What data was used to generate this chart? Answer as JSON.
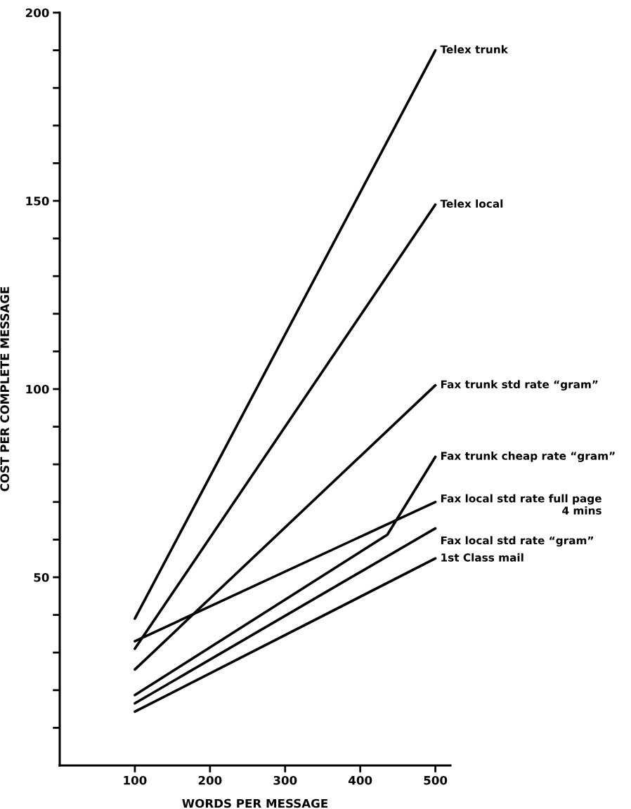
{
  "chart_data": {
    "type": "line",
    "xlabel": "WORDS PER MESSAGE",
    "ylabel": "COST PER COMPLETE MESSAGE",
    "xlim": [
      0,
      520
    ],
    "ylim": [
      0,
      200
    ],
    "xticks": [
      100,
      200,
      300,
      400,
      500
    ],
    "yticks": [
      {
        "value": 10,
        "label": null
      },
      {
        "value": 20,
        "label": null
      },
      {
        "value": 30,
        "label": null
      },
      {
        "value": 40,
        "label": null
      },
      50,
      {
        "value": 60,
        "label": null
      },
      {
        "value": 70,
        "label": null
      },
      {
        "value": 80,
        "label": null
      },
      {
        "value": 90,
        "label": null
      },
      100,
      {
        "value": 110,
        "label": null
      },
      {
        "value": 120,
        "label": null
      },
      {
        "value": 130,
        "label": null
      },
      {
        "value": 140,
        "label": null
      },
      150,
      {
        "value": 160,
        "label": null
      },
      {
        "value": 170,
        "label": null
      },
      {
        "value": 180,
        "label": null
      },
      {
        "value": 190,
        "label": null
      },
      200
    ],
    "grid": false,
    "legend": false,
    "marker": "none",
    "line_style": "solid",
    "series": [
      {
        "name": "Telex trunk",
        "color": "#000000",
        "x": [
          100,
          500
        ],
        "values": [
          39,
          190
        ]
      },
      {
        "name": "Telex local",
        "color": "#000000",
        "x": [
          100,
          500
        ],
        "values": [
          31,
          149
        ]
      },
      {
        "name": "Fax trunk std rate “gram”",
        "color": "#000000",
        "x": [
          100,
          500
        ],
        "values": [
          25.5,
          101
        ]
      },
      {
        "name": "Fax trunk cheap rate “gram”",
        "color": "#000000",
        "x": [
          100,
          436,
          500
        ],
        "values": [
          18.7,
          61.3,
          82
        ]
      },
      {
        "name": "Fax local std rate full page\n4 mins",
        "color": "#000000",
        "x": [
          100,
          500
        ],
        "values": [
          33,
          70
        ]
      },
      {
        "name": "Fax local std rate “gram”",
        "color": "#000000",
        "x": [
          100,
          500
        ],
        "values": [
          16.5,
          63
        ]
      },
      {
        "name": "1st Class mail",
        "color": "#000000",
        "x": [
          100,
          500
        ],
        "values": [
          14.3,
          55
        ]
      }
    ]
  }
}
